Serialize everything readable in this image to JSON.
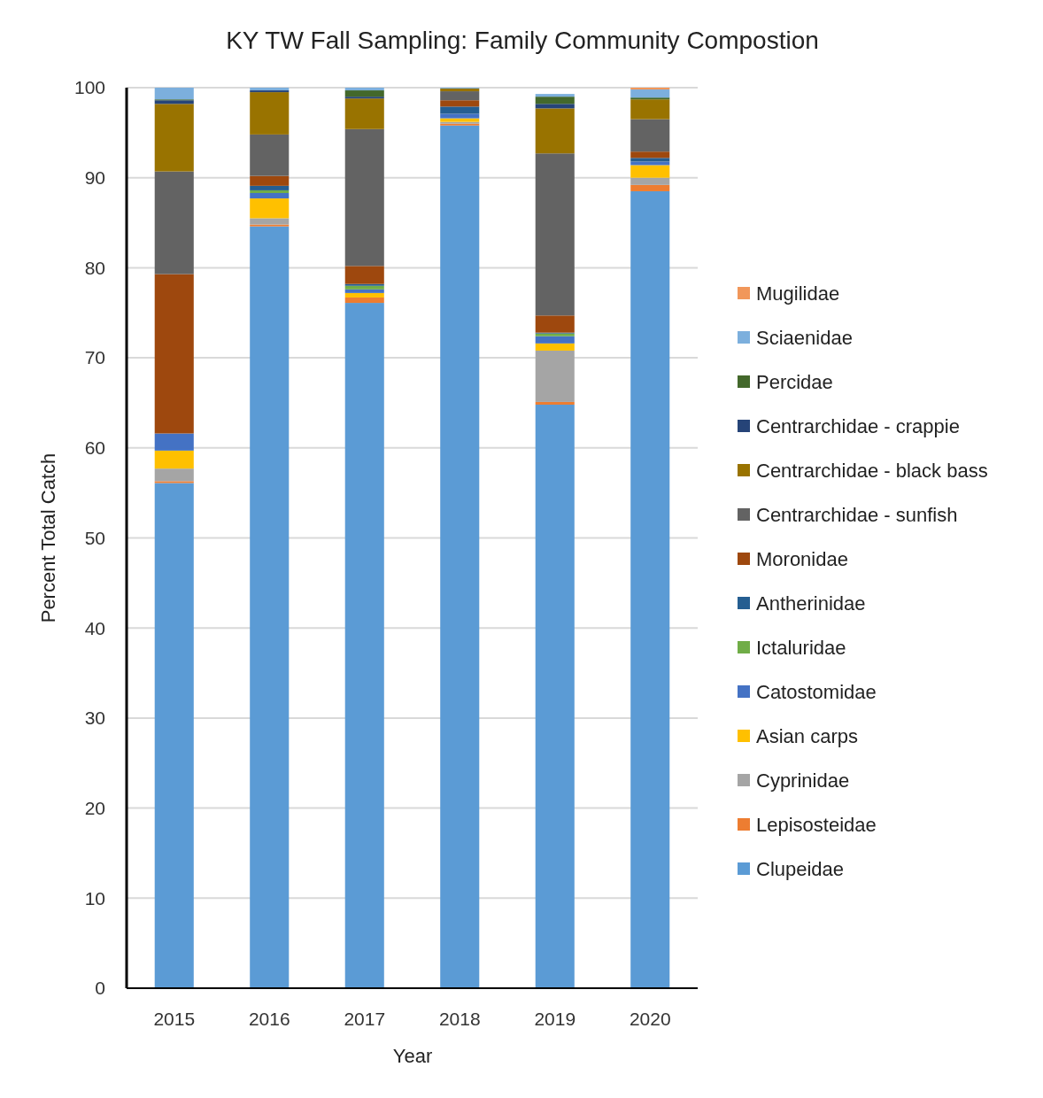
{
  "chart_data": {
    "type": "bar",
    "title": "KY TW Fall Sampling: Family Community Compostion",
    "xlabel": "Year",
    "ylabel": "Percent Total Catch",
    "categories": [
      "2015",
      "2016",
      "2017",
      "2018",
      "2019",
      "2020"
    ],
    "stacked": true,
    "ylim": [
      0,
      100
    ],
    "yticks": [
      0,
      10,
      20,
      30,
      40,
      50,
      60,
      70,
      80,
      90,
      100
    ],
    "grid": "y",
    "legend": "right",
    "series": [
      {
        "name": "Clupeidae",
        "color": "#5b9bd5",
        "values": [
          56.1,
          84.6,
          76.1,
          95.8,
          64.8,
          88.5
        ]
      },
      {
        "name": "Lepisosteidae",
        "color": "#ed7d31",
        "values": [
          0.2,
          0.2,
          0.6,
          0.2,
          0.3,
          0.7
        ]
      },
      {
        "name": "Cyprinidae",
        "color": "#a5a5a5",
        "values": [
          1.4,
          0.7,
          0,
          0.2,
          5.7,
          0.8
        ]
      },
      {
        "name": "Asian carps",
        "color": "#ffc000",
        "values": [
          2.0,
          2.2,
          0.5,
          0.4,
          0.8,
          1.4
        ]
      },
      {
        "name": "Catostomidae",
        "color": "#4472c4",
        "values": [
          1.9,
          0.6,
          0.4,
          0.5,
          0.8,
          0.4
        ]
      },
      {
        "name": "Ictaluridae",
        "color": "#70ad47",
        "values": [
          0,
          0.3,
          0.4,
          0,
          0.3,
          0
        ]
      },
      {
        "name": "Antherinidae",
        "color": "#255e91",
        "values": [
          0,
          0.5,
          0.2,
          0.8,
          0.1,
          0.4
        ]
      },
      {
        "name": "Moronidae",
        "color": "#9e480e",
        "values": [
          17.7,
          1.1,
          2.0,
          0.7,
          1.9,
          0.7
        ]
      },
      {
        "name": "Centrarchidae - sunfish",
        "color": "#636363",
        "values": [
          11.4,
          4.6,
          15.2,
          1.0,
          18.0,
          3.6
        ]
      },
      {
        "name": "Centrarchidae - black bass",
        "color": "#997300",
        "values": [
          7.5,
          4.7,
          3.4,
          0.3,
          5.0,
          2.2
        ]
      },
      {
        "name": "Centrarchidae - crappie",
        "color": "#264478",
        "values": [
          0.4,
          0.2,
          0.2,
          0,
          0.5,
          0
        ]
      },
      {
        "name": "Percidae",
        "color": "#43682b",
        "values": [
          0.1,
          0,
          0.7,
          0,
          0.8,
          0.2
        ]
      },
      {
        "name": "Sciaenidae",
        "color": "#7cafdd",
        "values": [
          1.3,
          0.3,
          0.3,
          0.1,
          0.3,
          0.9
        ]
      },
      {
        "name": "Mugilidae",
        "color": "#f1975a",
        "values": [
          0,
          0,
          0,
          0,
          0,
          0.2
        ]
      }
    ]
  }
}
